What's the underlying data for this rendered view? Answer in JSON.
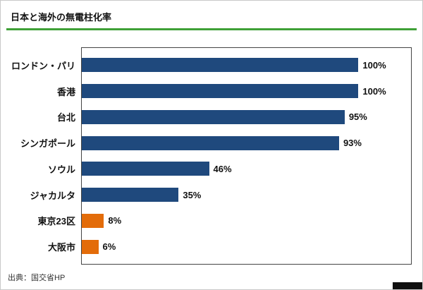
{
  "page": {
    "title": "日本と海外の無電柱化率",
    "source": "出典：国交省HP"
  },
  "colors": {
    "title_underline": "#3fa037",
    "bar_default": "#1f497d",
    "bar_japan": "#e36c0a",
    "plot_border": "#444444"
  },
  "chart_data": {
    "type": "bar",
    "orientation": "horizontal",
    "title": "日本と海外の無電柱化率",
    "categories": [
      "ロンドン・パリ",
      "香港",
      "台北",
      "シンガポール",
      "ソウル",
      "ジャカルタ",
      "東京23区",
      "大阪市"
    ],
    "values": [
      100,
      100,
      95,
      93,
      46,
      35,
      8,
      6
    ],
    "value_labels": [
      "100%",
      "100%",
      "95%",
      "93%",
      "46%",
      "35%",
      "8%",
      "6%"
    ],
    "bar_colors": [
      "#1f497d",
      "#1f497d",
      "#1f497d",
      "#1f497d",
      "#1f497d",
      "#1f497d",
      "#e36c0a",
      "#e36c0a"
    ],
    "xlim": [
      0,
      119
    ],
    "grid": false,
    "legend": false,
    "source": "出典：国交省HP"
  }
}
